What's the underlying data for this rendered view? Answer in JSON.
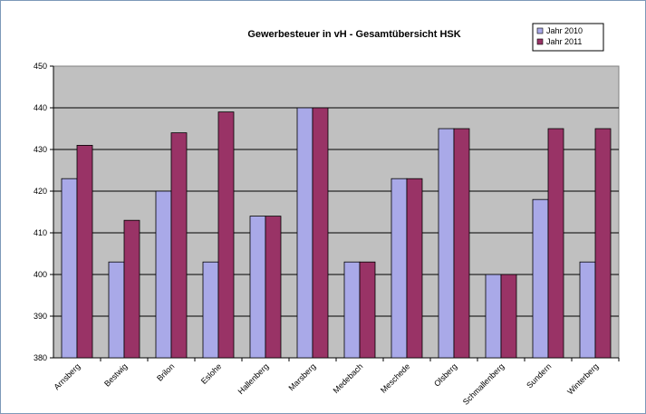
{
  "chart_data": {
    "type": "bar",
    "title": "Gewerbesteuer in vH - Gesamtübersicht HSK",
    "xlabel": "",
    "ylabel": "",
    "categories": [
      "Arnsberg",
      "Bestwig",
      "Brilon",
      "Eslohe",
      "Hallenberg",
      "Marsberg",
      "Medebach",
      "Meschede",
      "Olsberg",
      "Schmallenberg",
      "Sundern",
      "Winterberg"
    ],
    "series": [
      {
        "name": "Jahr 2010",
        "color": "#a9a9e8",
        "values": [
          423,
          403,
          420,
          403,
          414,
          440,
          403,
          423,
          435,
          400,
          418,
          403
        ]
      },
      {
        "name": "Jahr 2011",
        "color": "#993366",
        "values": [
          431,
          413,
          434,
          439,
          414,
          440,
          403,
          423,
          435,
          400,
          435,
          435
        ]
      }
    ],
    "ylim": [
      380,
      450
    ],
    "yticks": [
      380,
      390,
      400,
      410,
      420,
      430,
      440,
      450
    ],
    "grid": true,
    "legend": "top-right",
    "plot_background": "#c0c0c0"
  }
}
